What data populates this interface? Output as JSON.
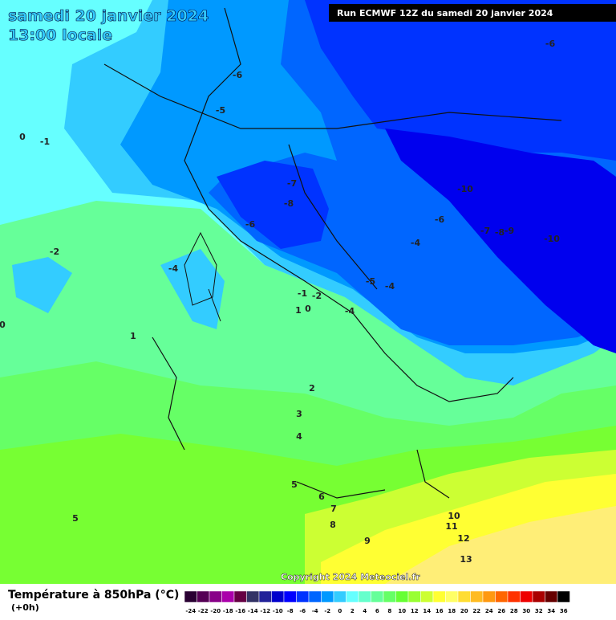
{
  "header": {
    "title": "samedi 20 janvier 2024",
    "subtitle": "13:00 locale",
    "run": "Run ECMWF 12Z du samedi 20 janvier 2024"
  },
  "contour_labels": [
    -6,
    -6,
    -5,
    0,
    -1,
    -7,
    -10,
    -8,
    -6,
    -6,
    -7,
    -8,
    -9,
    -10,
    -4,
    -2,
    -4,
    -5,
    -4,
    -1,
    -2,
    1,
    0,
    -4,
    0,
    1,
    2,
    3,
    4,
    5,
    6,
    7,
    5,
    10,
    8,
    11,
    9,
    12,
    13
  ],
  "copyright": "Copyright 2024 Meteociel.fr",
  "legend": {
    "title": "Température à 850hPa (°C)",
    "subtitle": "(+0h)",
    "ticks": [
      -24,
      -22,
      -20,
      -18,
      -16,
      -14,
      -12,
      -10,
      -8,
      -6,
      -4,
      -2,
      0,
      2,
      4,
      6,
      8,
      10,
      12,
      14,
      16,
      18,
      20,
      22,
      24,
      26,
      28,
      30,
      32,
      34,
      36
    ],
    "colors": [
      "#2a0033",
      "#550055",
      "#880088",
      "#aa00aa",
      "#660044",
      "#333366",
      "#222299",
      "#0000cc",
      "#0000ff",
      "#0033ff",
      "#0066ff",
      "#0099ff",
      "#33ccff",
      "#66ffff",
      "#66ffcc",
      "#66ff99",
      "#66ff66",
      "#66ff33",
      "#99ff33",
      "#ccff33",
      "#ffff33",
      "#ffff66",
      "#ffdd33",
      "#ffbb22",
      "#ff9911",
      "#ff6600",
      "#ff3300",
      "#ee0000",
      "#aa0000",
      "#660000",
      "#000000"
    ]
  }
}
